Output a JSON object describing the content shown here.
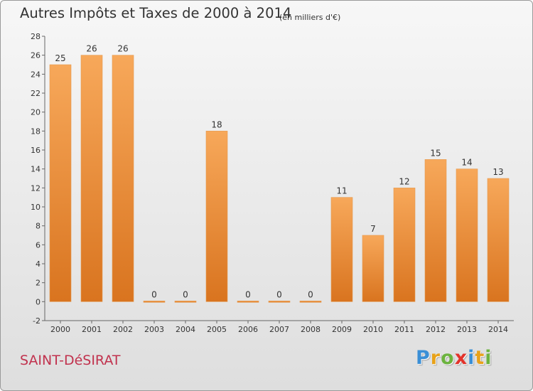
{
  "chart_data": {
    "type": "bar",
    "title": "Autres Impôts et Taxes de 2000 à 2014",
    "subtitle": "(en milliers d'€)",
    "categories": [
      "2000",
      "2001",
      "2002",
      "2003",
      "2004",
      "2005",
      "2006",
      "2007",
      "2008",
      "2009",
      "2010",
      "2011",
      "2012",
      "2013",
      "2014"
    ],
    "values": [
      25,
      26,
      26,
      0,
      0,
      18,
      0,
      0,
      0,
      11,
      7,
      12,
      15,
      14,
      13
    ],
    "ylim": [
      -2,
      28
    ],
    "yticks": [
      -2,
      0,
      2,
      4,
      6,
      8,
      10,
      12,
      14,
      16,
      18,
      20,
      22,
      24,
      26,
      28
    ],
    "grid": false,
    "colors": {
      "bar_light": "#f7a85a",
      "bar_dark": "#d9741f",
      "axis": "#666666",
      "text": "#333333"
    }
  },
  "commune": "SAINT-DéSIRAT",
  "logo": {
    "letters": [
      {
        "char": "P",
        "color": "#3a8fd6"
      },
      {
        "char": "r",
        "color": "#e8a21a"
      },
      {
        "char": "o",
        "color": "#6cb33f"
      },
      {
        "char": "x",
        "color": "#e2332b"
      },
      {
        "char": "i",
        "color": "#3a8fd6"
      },
      {
        "char": "t",
        "color": "#e8a21a"
      },
      {
        "char": "i",
        "color": "#6cb33f"
      }
    ]
  }
}
